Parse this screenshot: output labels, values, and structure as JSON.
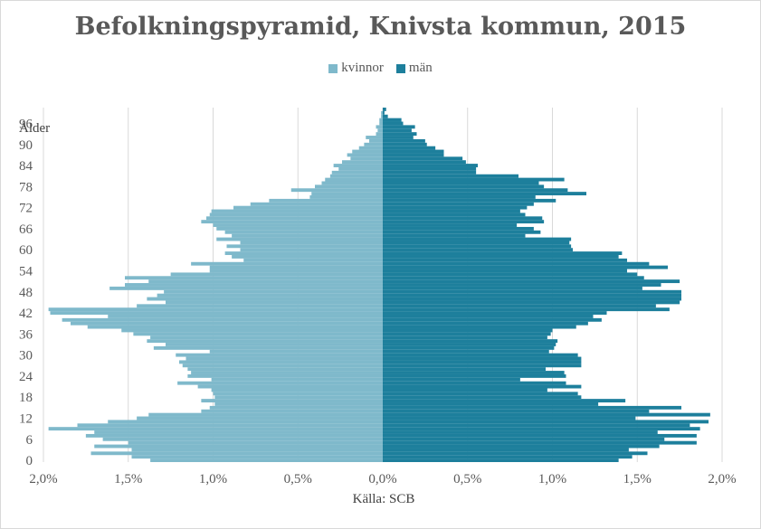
{
  "chart_data": {
    "type": "bar",
    "orientation": "horizontal",
    "layout": "population-pyramid",
    "title": "Befolkningspyramid, Knivsta kommun, 2015",
    "ylabel": "Ålder",
    "source_note": "Källa: SCB",
    "legend_position": "top",
    "grid": "vertical",
    "xlim": [
      -2.0,
      2.0
    ],
    "x_ticks": [
      "2,0%",
      "1,5%",
      "1,0%",
      "0,5%",
      "0,0%",
      "0,5%",
      "1,0%",
      "1,5%",
      "2,0%"
    ],
    "y_ticks": [
      "0",
      "6",
      "12",
      "18",
      "24",
      "30",
      "36",
      "42",
      "48",
      "54",
      "60",
      "66",
      "72",
      "78",
      "84",
      "90",
      "96"
    ],
    "ages": [
      0,
      1,
      2,
      3,
      4,
      5,
      6,
      7,
      8,
      9,
      10,
      11,
      12,
      13,
      14,
      15,
      16,
      17,
      18,
      19,
      20,
      21,
      22,
      23,
      24,
      25,
      26,
      27,
      28,
      29,
      30,
      31,
      32,
      33,
      34,
      35,
      36,
      37,
      38,
      39,
      40,
      41,
      42,
      43,
      44,
      45,
      46,
      47,
      48,
      49,
      50,
      51,
      52,
      53,
      54,
      55,
      56,
      57,
      58,
      59,
      60,
      61,
      62,
      63,
      64,
      65,
      66,
      67,
      68,
      69,
      70,
      71,
      72,
      73,
      74,
      75,
      76,
      77,
      78,
      79,
      80,
      81,
      82,
      83,
      84,
      85,
      86,
      87,
      88,
      89,
      90,
      91,
      92,
      93,
      94,
      95,
      96,
      97,
      98,
      99,
      100
    ],
    "series": [
      {
        "name": "kvinnor",
        "color": "#7fb9cb",
        "values": [
          1.37,
          1.48,
          1.72,
          1.48,
          1.7,
          1.5,
          1.65,
          1.75,
          1.7,
          1.97,
          1.8,
          1.62,
          1.45,
          1.38,
          1.07,
          1.02,
          0.99,
          1.07,
          0.99,
          1.0,
          1.01,
          1.09,
          1.21,
          1.01,
          1.15,
          1.13,
          1.15,
          1.18,
          1.2,
          1.16,
          1.22,
          1.02,
          1.35,
          1.28,
          1.39,
          1.37,
          1.47,
          1.54,
          1.74,
          1.84,
          1.89,
          1.62,
          1.96,
          1.97,
          1.45,
          1.28,
          1.39,
          1.33,
          1.29,
          1.61,
          1.52,
          1.38,
          1.52,
          1.25,
          1.02,
          1.02,
          1.13,
          0.82,
          0.89,
          0.93,
          0.84,
          0.92,
          0.84,
          0.98,
          0.89,
          0.93,
          0.98,
          1.0,
          1.07,
          1.04,
          1.02,
          1.01,
          0.88,
          0.78,
          0.67,
          0.43,
          0.42,
          0.54,
          0.4,
          0.36,
          0.34,
          0.31,
          0.3,
          0.26,
          0.29,
          0.24,
          0.19,
          0.21,
          0.18,
          0.14,
          0.11,
          0.08,
          0.1,
          0.04,
          0.03,
          0.04,
          0.02,
          0.02,
          0.01,
          0.01,
          0.0
        ]
      },
      {
        "name": "män",
        "color": "#1d7f9c",
        "values": [
          1.39,
          1.47,
          1.56,
          1.45,
          1.63,
          1.85,
          1.66,
          1.85,
          1.62,
          1.87,
          1.81,
          1.92,
          1.49,
          1.93,
          1.57,
          1.76,
          1.27,
          1.43,
          1.17,
          1.15,
          0.97,
          1.17,
          1.08,
          0.81,
          1.08,
          1.07,
          0.96,
          1.17,
          1.17,
          1.17,
          1.15,
          0.98,
          1.01,
          1.02,
          1.03,
          0.97,
          0.99,
          1.0,
          1.14,
          1.21,
          1.29,
          1.24,
          1.32,
          1.69,
          1.61,
          1.75,
          1.76,
          1.76,
          1.76,
          1.53,
          1.64,
          1.75,
          1.54,
          1.5,
          1.44,
          1.68,
          1.57,
          1.44,
          1.39,
          1.41,
          1.12,
          1.11,
          1.1,
          1.11,
          0.84,
          0.93,
          0.89,
          0.79,
          0.95,
          0.94,
          0.84,
          0.81,
          0.85,
          0.89,
          1.02,
          0.9,
          1.2,
          1.09,
          0.95,
          0.92,
          1.07,
          0.8,
          0.55,
          0.55,
          0.56,
          0.49,
          0.47,
          0.36,
          0.36,
          0.31,
          0.26,
          0.25,
          0.18,
          0.2,
          0.17,
          0.19,
          0.12,
          0.11,
          0.03,
          0.01,
          0.02
        ]
      }
    ]
  }
}
